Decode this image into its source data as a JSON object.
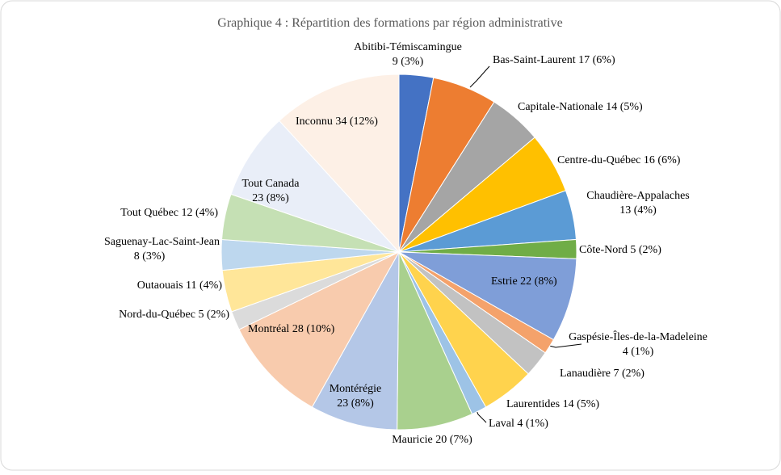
{
  "chart_data": {
    "type": "pie",
    "title": "Graphique 4 : Répartition des formations par région administrative",
    "categories": [
      "Abitibi-Témiscamingue",
      "Bas-Saint-Laurent",
      "Capitale-Nationale",
      "Centre-du-Québec",
      "Chaudière-Appalaches",
      "Côte-Nord",
      "Estrie",
      "Gaspésie-Îles-de-la-Madeleine",
      "Lanaudière",
      "Laurentides",
      "Laval",
      "Mauricie",
      "Montérégie",
      "Montréal",
      "Nord-du-Québec",
      "Outaouais",
      "Saguenay-Lac-Saint-Jean",
      "Tout Québec",
      "Tout Canada",
      "Inconnu"
    ],
    "values": [
      9,
      17,
      14,
      16,
      13,
      5,
      22,
      4,
      7,
      14,
      4,
      20,
      23,
      28,
      5,
      11,
      8,
      12,
      23,
      34
    ],
    "value_labels": [
      "9 (3%)",
      "17 (6%)",
      "14 (5%)",
      "16 (6%)",
      "13 (4%)",
      "5 (2%)",
      "22 (8%)",
      "4 (1%)",
      "7 (2%)",
      "14 (5%)",
      "4 (1%)",
      "20 (7%)",
      "23 (8%)",
      "28 (10%)",
      "5 (2%)",
      "11 (4%)",
      "8 (3%)",
      "12 (4%)",
      "23 (8%)",
      "34 (12%)"
    ],
    "colors": [
      "#4472c4",
      "#ed7d31",
      "#a5a5a5",
      "#ffc000",
      "#5b9bd5",
      "#70ad47",
      "#7f9ed8",
      "#f4a26b",
      "#c2c2c2",
      "#ffd34d",
      "#9dc3e6",
      "#a9d08e",
      "#b4c7e7",
      "#f8cbad",
      "#dbdbdb",
      "#ffe699",
      "#bdd7ee",
      "#c5e0b4",
      "#e9eef8",
      "#fdf0e6"
    ]
  }
}
